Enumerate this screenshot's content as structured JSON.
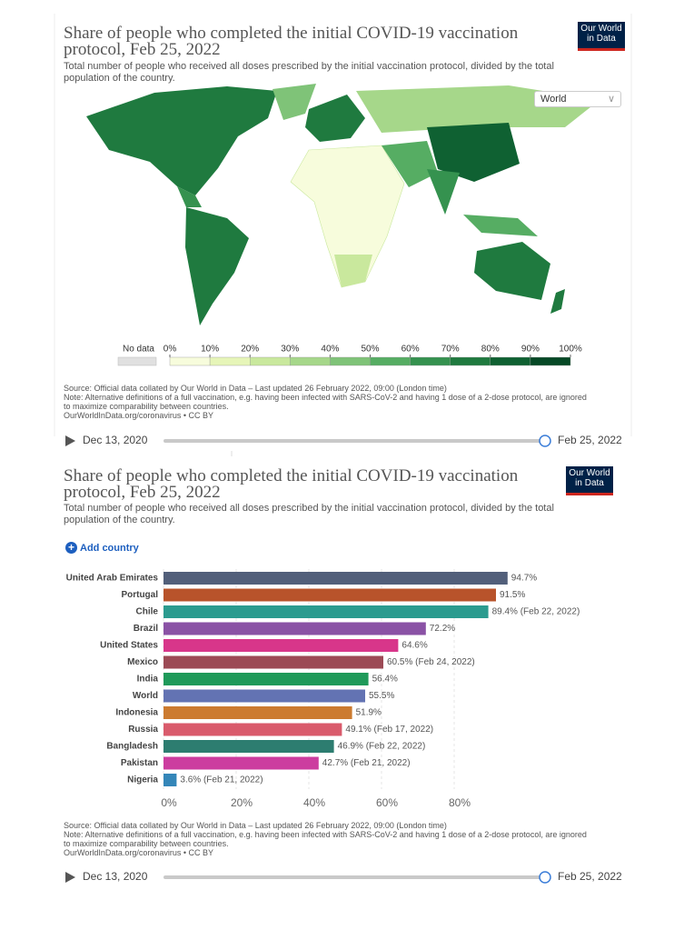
{
  "logo": "Our World in Data",
  "chart_data": [
    {
      "type": "map",
      "title": "Share of people who completed the initial COVID-19 vaccination protocol, Feb 25, 2022",
      "subtitle": "Total number of people who received all doses prescribed by the initial vaccination protocol, divided by the total population of the country.",
      "region_selector": "World",
      "no_data_label": "No data",
      "no_data_color": "#e0e0e0",
      "xlim": [
        0,
        100
      ],
      "xticks": [
        {
          "value": 0,
          "label": "0%"
        },
        {
          "value": 10,
          "label": "10%"
        },
        {
          "value": 20,
          "label": "20%"
        },
        {
          "value": 30,
          "label": "30%"
        },
        {
          "value": 40,
          "label": "40%"
        },
        {
          "value": 50,
          "label": "50%"
        },
        {
          "value": 60,
          "label": "60%"
        },
        {
          "value": 70,
          "label": "70%"
        },
        {
          "value": 80,
          "label": "80%"
        },
        {
          "value": 90,
          "label": "90%"
        },
        {
          "value": 100,
          "label": "100%"
        }
      ],
      "colors": [
        "#f7fcdc",
        "#e6f5b8",
        "#c9e89d",
        "#a6d78a",
        "#7fc378",
        "#56ad63",
        "#35924f",
        "#1f7a3f",
        "#0f6132",
        "#064926"
      ],
      "source": "Source: Official data collated by Our World in Data – Last updated 26 February 2022, 09:00 (London time)",
      "note": "Note: Alternative definitions of a full vaccination, e.g. having been infected with SARS-CoV-2 and having 1 dose of a 2-dose protocol, are ignored to maximize comparability between countries.",
      "link": "OurWorldInData.org/coronavirus • CC BY",
      "timeline": {
        "start": "Dec 13, 2020",
        "end": "Feb 25, 2022"
      }
    },
    {
      "type": "bar",
      "title": "Share of people who completed the initial COVID-19 vaccination protocol, Feb 25, 2022",
      "subtitle": "Total number of people who received all doses prescribed by the initial vaccination protocol, divided by the total population of the country.",
      "add_country": "Add country",
      "categories": [
        "United Arab Emirates",
        "Portugal",
        "Chile",
        "Brazil",
        "United States",
        "Mexico",
        "India",
        "World",
        "Indonesia",
        "Russia",
        "Bangladesh",
        "Pakistan",
        "Nigeria"
      ],
      "values": [
        94.7,
        91.5,
        89.4,
        72.2,
        64.6,
        60.5,
        56.4,
        55.5,
        51.9,
        49.1,
        46.9,
        42.7,
        3.6
      ],
      "value_labels": [
        "94.7%",
        "91.5%",
        "89.4% (Feb 22, 2022)",
        "72.2%",
        "64.6%",
        "60.5% (Feb 24, 2022)",
        "56.4%",
        "55.5%",
        "51.9%",
        "49.1% (Feb 17, 2022)",
        "46.9% (Feb 22, 2022)",
        "42.7% (Feb 21, 2022)",
        "3.6% (Feb 21, 2022)"
      ],
      "colors": [
        "#525f7a",
        "#b8532b",
        "#2b9b8f",
        "#8a52a5",
        "#d8368a",
        "#9c4a55",
        "#1f9a5a",
        "#6373b3",
        "#cc7b30",
        "#d95b6c",
        "#2d7d70",
        "#cc3d9f",
        "#3486b8"
      ],
      "xlim": [
        0,
        100
      ],
      "xticks": [
        {
          "value": 0,
          "label": "0%"
        },
        {
          "value": 20,
          "label": "20%"
        },
        {
          "value": 40,
          "label": "40%"
        },
        {
          "value": 60,
          "label": "60%"
        },
        {
          "value": 80,
          "label": "80%"
        }
      ],
      "source": "Source: Official data collated by Our World in Data – Last updated 26 February 2022, 09:00 (London time)",
      "note": "Note: Alternative definitions of a full vaccination, e.g. having been infected with SARS-CoV-2 and having 1 dose of a 2-dose protocol, are ignored to maximize comparability between countries.",
      "link": "OurWorldInData.org/coronavirus • CC BY",
      "timeline": {
        "start": "Dec 13, 2020",
        "end": "Feb 25, 2022"
      }
    }
  ]
}
